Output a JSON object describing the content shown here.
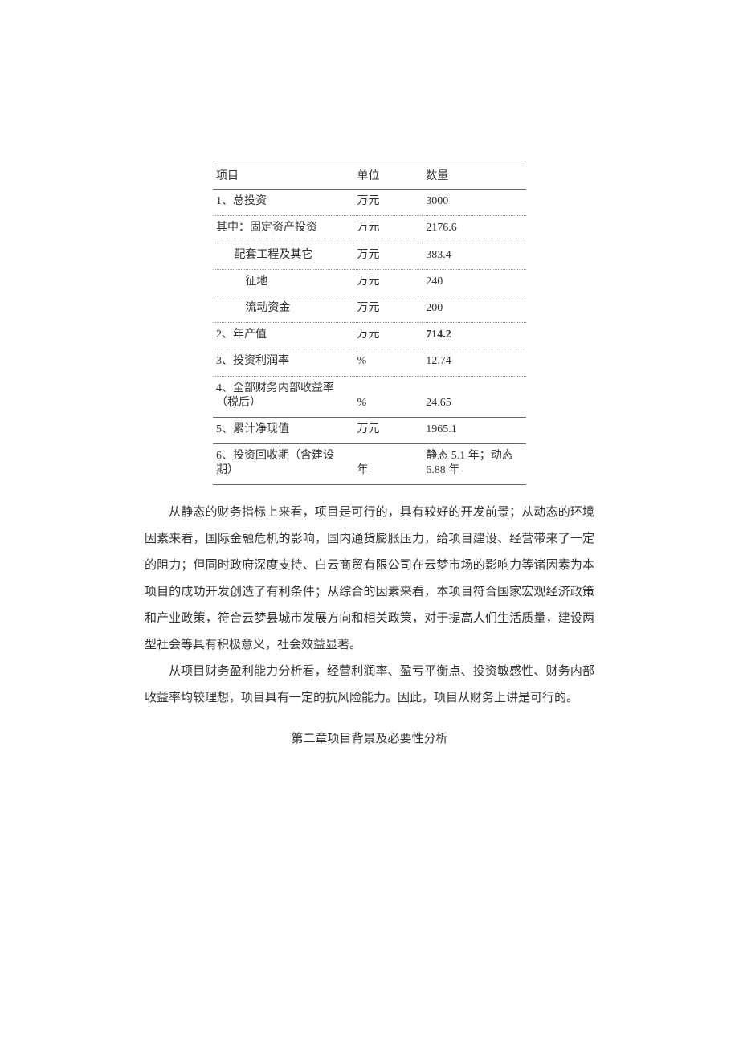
{
  "table": {
    "header": {
      "c1": "项目",
      "c2": "单位",
      "c3": "数量"
    },
    "rows": [
      {
        "c1": "1、总投资",
        "c2": "万元",
        "c3": "3000",
        "indent": 0
      },
      {
        "c1": "其中：固定资产投资",
        "c2": "万元",
        "c3": "2176.6",
        "indent": 0
      },
      {
        "c1": "配套工程及其它",
        "c2": "万元",
        "c3": "383.4",
        "indent": 2
      },
      {
        "c1": "征地",
        "c2": "万元",
        "c3": "240",
        "indent": 3
      },
      {
        "c1": "流动资金",
        "c2": "万元",
        "c3": "200",
        "indent": 3
      },
      {
        "c1": "2、年产值",
        "c2": "万元",
        "c3": "714.2",
        "indent": 0
      },
      {
        "c1": "3、投资利润率",
        "c2": "%",
        "c3": "12.74",
        "indent": 0
      },
      {
        "c1": "  4、全部财务内部收益率（税后）",
        "c2": "%",
        "c3": "24.65",
        "indent": 0
      },
      {
        "c1": "5、累计净现值",
        "c2": "万元",
        "c3": "1965.1",
        "indent": 0
      },
      {
        "c1": "  6、投资回收期（含建设期）",
        "c2": "年",
        "c3": "静态 5.1 年；动态 6.88 年",
        "indent": 0
      }
    ]
  },
  "paragraphs": {
    "p1": "从静态的财务指标上来看，项目是可行的，具有较好的开发前景；从动态的环境因素来看，国际金融危机的影响，国内通货膨胀压力，给项目建设、经营带来了一定的阻力；但同时政府深度支持、白云商贸有限公司在云梦市场的影响力等诸因素为本项目的成功开发创造了有利条件；从综合的因素来看，本项目符合国家宏观经济政策和产业政策，符合云梦县城市发展方向和相关政策，对于提高人们生活质量，建设两型社会等具有积极意义，社会效益显著。",
    "p2": "从项目财务盈利能力分析看，经营利润率、盈亏平衡点、投资敏感性、财务内部收益率均较理想，项目具有一定的抗风险能力。因此，项目从财务上讲是可行的。"
  },
  "chapter": "第二章项目背景及必要性分析"
}
